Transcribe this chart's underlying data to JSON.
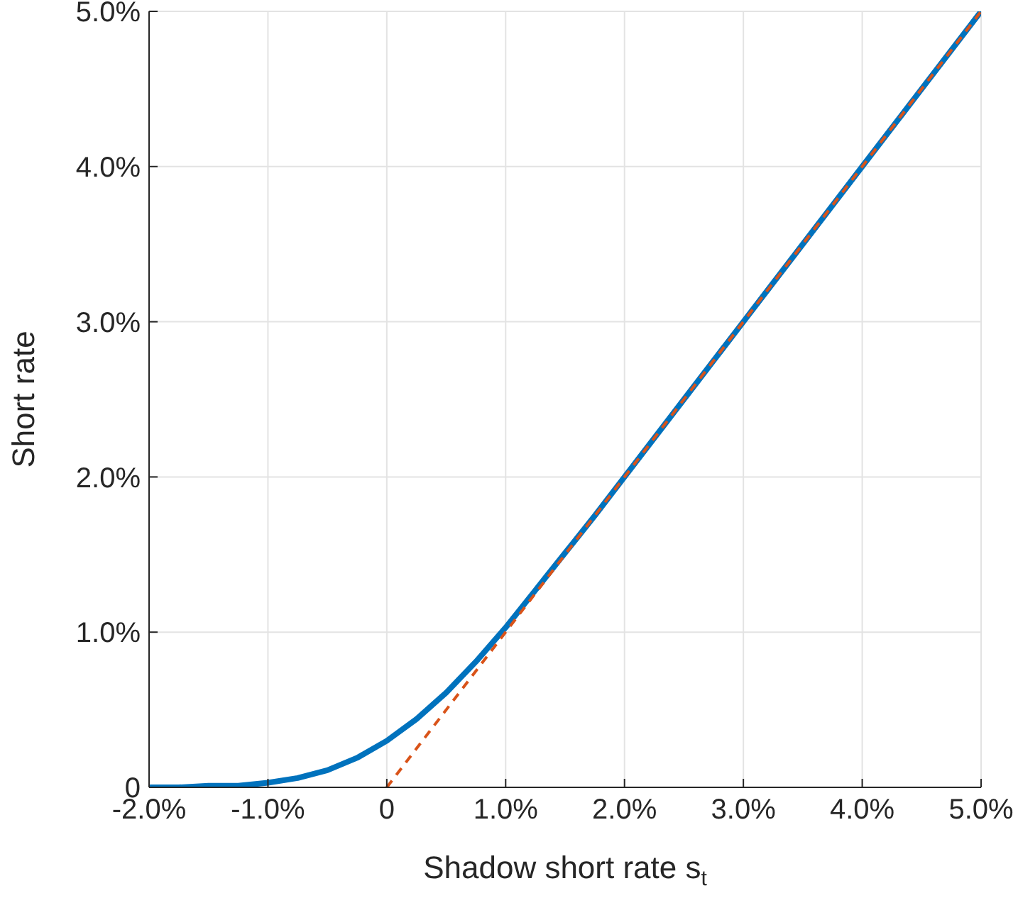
{
  "chart_data": {
    "type": "line",
    "xlabel": "Shadow short rate s$_{t}$",
    "ylabel": "Short rate",
    "xlim": [
      -2,
      5
    ],
    "ylim": [
      0,
      5
    ],
    "xticks": [
      {
        "value": -2,
        "label": "-2.0%"
      },
      {
        "value": -1,
        "label": "-1.0%"
      },
      0,
      {
        "value": 1,
        "label": "1.0%"
      },
      {
        "value": 2,
        "label": "2.0%"
      },
      {
        "value": 3,
        "label": "3.0%"
      },
      {
        "value": 4,
        "label": "4.0%"
      },
      {
        "value": 5,
        "label": "5.0%"
      }
    ],
    "yticks": [
      0,
      {
        "value": 1,
        "label": "1.0%"
      },
      {
        "value": 2,
        "label": "2.0%"
      },
      {
        "value": 3,
        "label": "3.0%"
      },
      {
        "value": 4,
        "label": "4.0%"
      },
      {
        "value": 5,
        "label": "5.0%"
      }
    ],
    "grid": true,
    "marker": "none",
    "series": [
      {
        "color": "#0072bd",
        "line_style": "solid",
        "x": [
          -2,
          -1.75,
          -1.5,
          -1.25,
          -1,
          -0.75,
          -0.5,
          -0.25,
          0,
          0.25,
          0.5,
          0.75,
          1,
          1.25,
          1.5,
          1.75,
          2,
          2.5,
          3,
          3.5,
          4,
          4.5,
          5
        ],
        "values": [
          0,
          0,
          0.01,
          0.01,
          0.03,
          0.06,
          0.11,
          0.19,
          0.3,
          0.44,
          0.61,
          0.81,
          1.03,
          1.27,
          1.51,
          1.75,
          2,
          2.5,
          3,
          3.5,
          4,
          4.5,
          5
        ]
      },
      {
        "color": "#d95319",
        "line_style": "dashed",
        "x": [
          0,
          5
        ],
        "values": [
          0,
          5
        ]
      }
    ]
  }
}
